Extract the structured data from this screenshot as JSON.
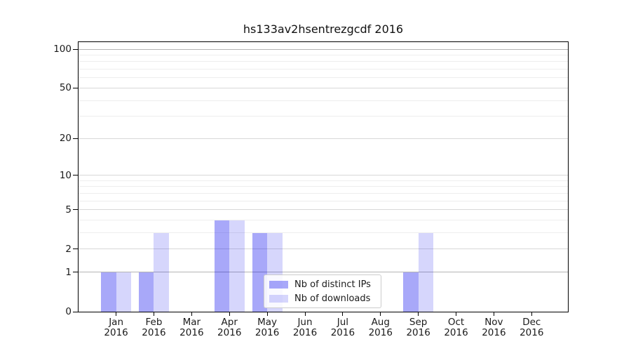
{
  "chart_data": {
    "type": "bar",
    "title": "hs133av2hsentrezgcdf 2016",
    "months": [
      "Jan",
      "Feb",
      "Mar",
      "Apr",
      "May",
      "Jun",
      "Jul",
      "Aug",
      "Sep",
      "Oct",
      "Nov",
      "Dec"
    ],
    "year_label": "2016",
    "series": [
      {
        "name": "Nb of distinct IPs",
        "color": "rgba(0,0,238,0.34)",
        "values": [
          1,
          1,
          0,
          4,
          3,
          0,
          0,
          0,
          1,
          0,
          0,
          0
        ]
      },
      {
        "name": "Nb of downloads",
        "color": "rgba(0,0,238,0.16)",
        "values": [
          1,
          3,
          0,
          4,
          3,
          0,
          0,
          0,
          3,
          0,
          0,
          0
        ]
      }
    ],
    "y_scale": "log10(value+1)",
    "ylim": [
      0,
      113
    ],
    "xlabel": "",
    "ylabel": "",
    "y_ticks": [
      0,
      1,
      2,
      5,
      10,
      20,
      50,
      100
    ],
    "y_minor_gridlines": [
      3,
      4,
      6,
      7,
      8,
      9,
      30,
      40,
      60,
      70,
      80,
      90
    ],
    "grid": {
      "major_color": "#d8d8d8",
      "minor_color": "#eeeeee",
      "emphasized_color": "#b4b4b4",
      "emphasized_values": [
        1,
        100
      ]
    },
    "legend_position": "lower-center",
    "axis_color": "#000000",
    "text_color": "#1a1a1a",
    "background_color": "#ffffff"
  }
}
